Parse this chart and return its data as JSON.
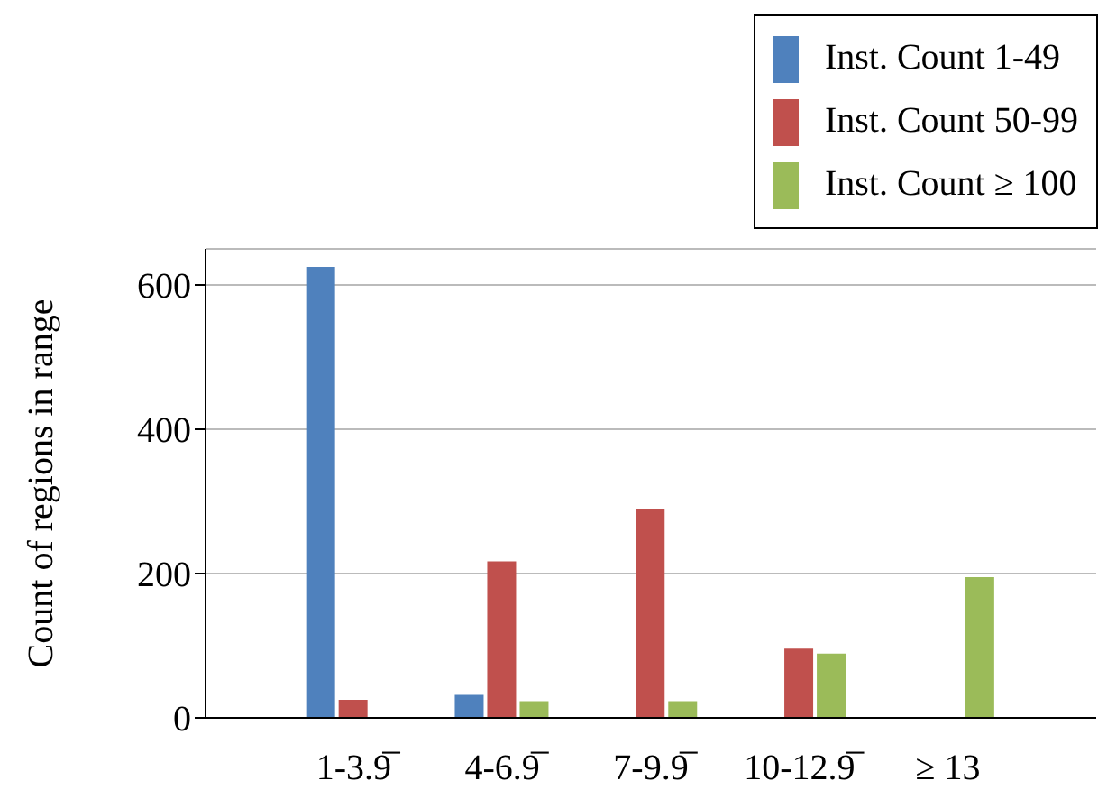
{
  "chart_data": {
    "type": "bar",
    "ylabel": "Count of regions in range",
    "categories": [
      "1-3.9̅",
      "4-6.9̅",
      "7-9.9̅",
      "10-12.9̅",
      "≥ 13"
    ],
    "series": [
      {
        "name": "Inst. Count 1-49",
        "color": "#4f81bd",
        "values": [
          625,
          32,
          null,
          null,
          null
        ]
      },
      {
        "name": "Inst. Count 50-99",
        "color": "#c0504d",
        "values": [
          25,
          217,
          290,
          96,
          null
        ]
      },
      {
        "name": "Inst. Count ≥ 100",
        "color": "#9bbb59",
        "values": [
          null,
          23,
          23,
          89,
          195
        ]
      }
    ],
    "ylim": [
      0,
      650
    ],
    "yticks": [
      0,
      200,
      400,
      600
    ],
    "grid": "y",
    "legend": "top right"
  }
}
